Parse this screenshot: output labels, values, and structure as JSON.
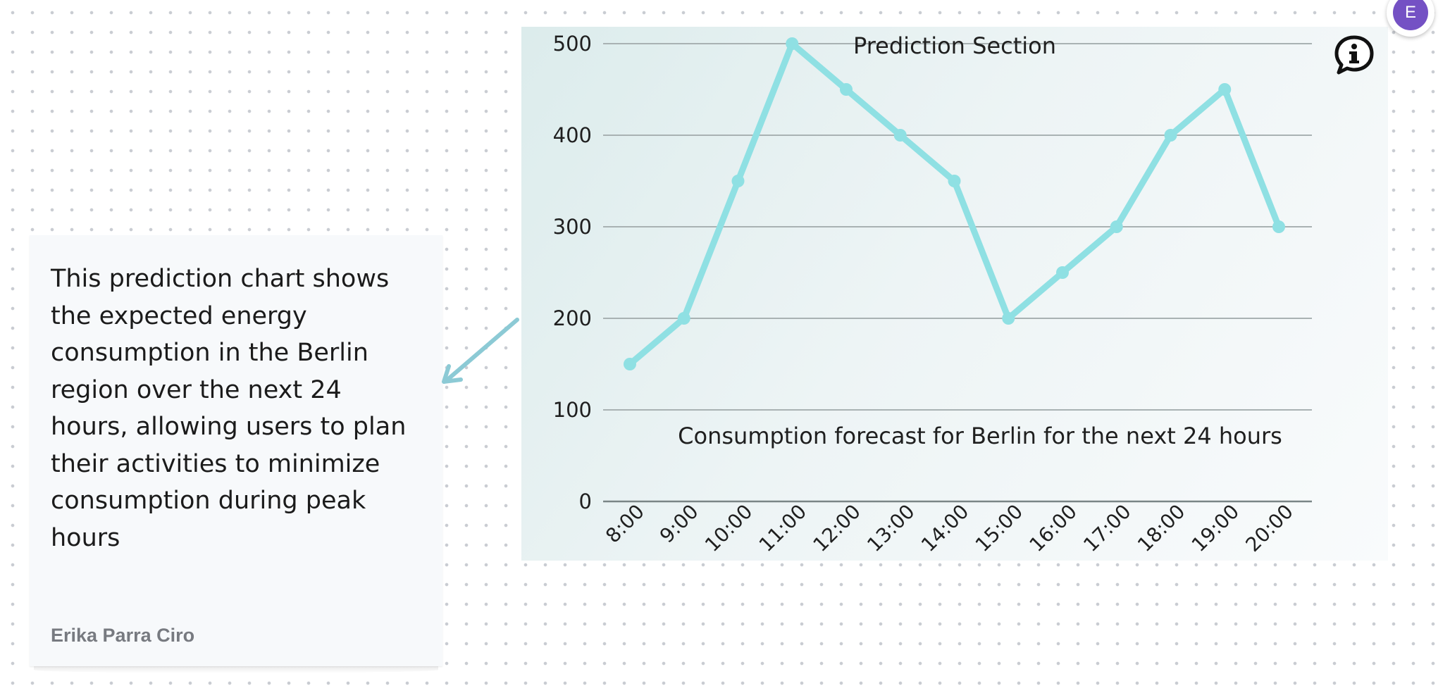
{
  "chart_section": {
    "title": "Prediction Section",
    "caption": "Consumption forecast for Berlin for the next 24 hours"
  },
  "chart_data": {
    "type": "line",
    "categories": [
      "8:00",
      "9:00",
      "10:00",
      "11:00",
      "12:00",
      "13:00",
      "14:00",
      "15:00",
      "16:00",
      "17:00",
      "18:00",
      "19:00",
      "20:00"
    ],
    "values": [
      150,
      200,
      350,
      500,
      450,
      400,
      350,
      200,
      250,
      300,
      400,
      450,
      300
    ],
    "yticks": [
      0,
      100,
      200,
      300,
      400,
      500
    ],
    "ylim": [
      0,
      500
    ],
    "title": "Prediction Section",
    "subtitle": "Consumption forecast for Berlin for the next 24 hours",
    "xlabel": "",
    "ylabel": "",
    "grid": true,
    "line_color": "#8fe0e3",
    "grid_color": "#a9b2b3"
  },
  "sticky_note": {
    "text": "This prediction chart shows the expected energy consumption in the Berlin region over the next 24 hours, allowing users to plan their activities to minimize consumption during peak hours",
    "author": "Erika Parra Ciro"
  },
  "avatar": {
    "initial": "E",
    "color": "#7451c4"
  },
  "icons": {
    "info": "info-comment-icon",
    "connector": "arrow-connector-icon"
  },
  "colors": {
    "connector": "#8ccad5"
  }
}
